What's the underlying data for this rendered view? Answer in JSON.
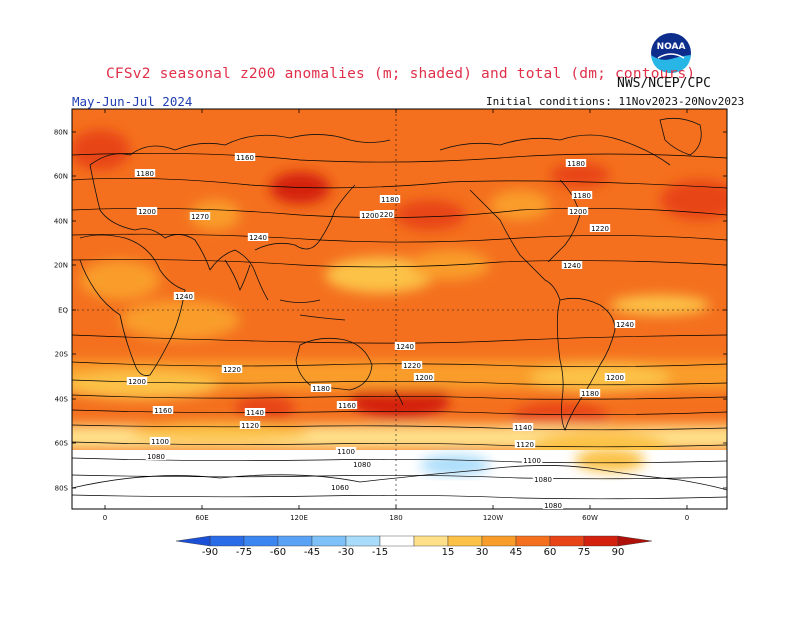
{
  "header": {
    "title": "CFSv2 seasonal z200 anomalies (m; shaded) and total (dm; contours)",
    "agency": "NWS/NCEP/CPC",
    "period": "May-Jun-Jul 2024",
    "initial_conditions": "Initial conditions: 11Nov2023-20Nov2023"
  },
  "logo": {
    "icon": "noaa-logo",
    "text": "NOAA"
  },
  "map": {
    "lat_labels": [
      "80N",
      "60N",
      "40N",
      "20N",
      "EQ",
      "20S",
      "40S",
      "60S",
      "80S"
    ],
    "lon_labels": [
      "0",
      "60E",
      "120E",
      "180",
      "120W",
      "60W",
      "0"
    ],
    "contour_labels": [
      "1160",
      "1180",
      "1200",
      "1270",
      "1240",
      "1180",
      "1200",
      "1220",
      "1180",
      "1180",
      "1200",
      "1220",
      "1240",
      "1240",
      "1240",
      "1240",
      "1220",
      "1200",
      "1220",
      "1200",
      "1200",
      "1180",
      "1160",
      "1140",
      "1120",
      "1180",
      "1160",
      "1140",
      "1120",
      "1100",
      "1100",
      "1080",
      "1080",
      "1100",
      "1080",
      "1060",
      "1080"
    ]
  },
  "colorbar": {
    "ticks": [
      "-90",
      "-75",
      "-60",
      "-45",
      "-30",
      "-15",
      "15",
      "30",
      "45",
      "60",
      "75",
      "90"
    ],
    "colors": [
      "#1a4fd6",
      "#2a6be8",
      "#3b86f0",
      "#5aa2f5",
      "#7ec1f8",
      "#a8dcfa",
      "#ffffff",
      "#ffe08a",
      "#fcc247",
      "#f99d2a",
      "#f4701e",
      "#e84418",
      "#d4200f",
      "#b0100a"
    ]
  }
}
